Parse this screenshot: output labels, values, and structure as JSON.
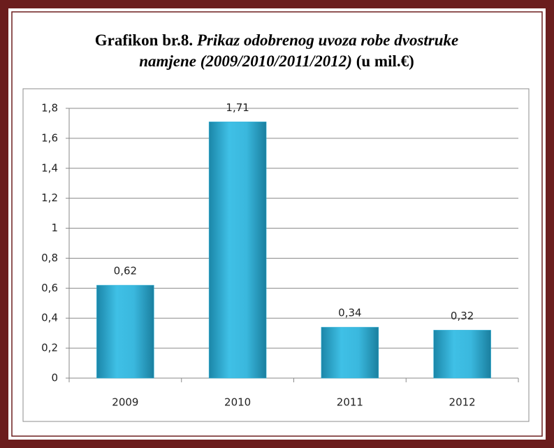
{
  "chart_data": {
    "type": "bar",
    "title_parts": {
      "lead": "Grafikon br.8.",
      "italic": [
        "Prikaz odobrenog uvoza robe dvostruke",
        "namjene (2009/2010/2011/2012)"
      ],
      "unit": "(u mil.€)"
    },
    "categories": [
      "2009",
      "2010",
      "2011",
      "2012"
    ],
    "values": [
      0.62,
      1.71,
      0.34,
      0.32
    ],
    "value_labels": [
      "0,62",
      "1,71",
      "0,34",
      "0,32"
    ],
    "color": "#35b6dc",
    "ylim": [
      0,
      1.8
    ],
    "yticks": [
      0,
      {
        "value": 0.2,
        "label": "0,2"
      },
      {
        "value": 0.4,
        "label": "0,4"
      },
      {
        "value": 0.6,
        "label": "0,6"
      },
      {
        "value": 0.8,
        "label": "0,8"
      },
      1,
      {
        "value": 1.2,
        "label": "1,2"
      },
      {
        "value": 1.4,
        "label": "1,4"
      },
      {
        "value": 1.6,
        "label": "1,6"
      },
      {
        "value": 1.8,
        "label": "1,8"
      }
    ],
    "grid": true
  }
}
